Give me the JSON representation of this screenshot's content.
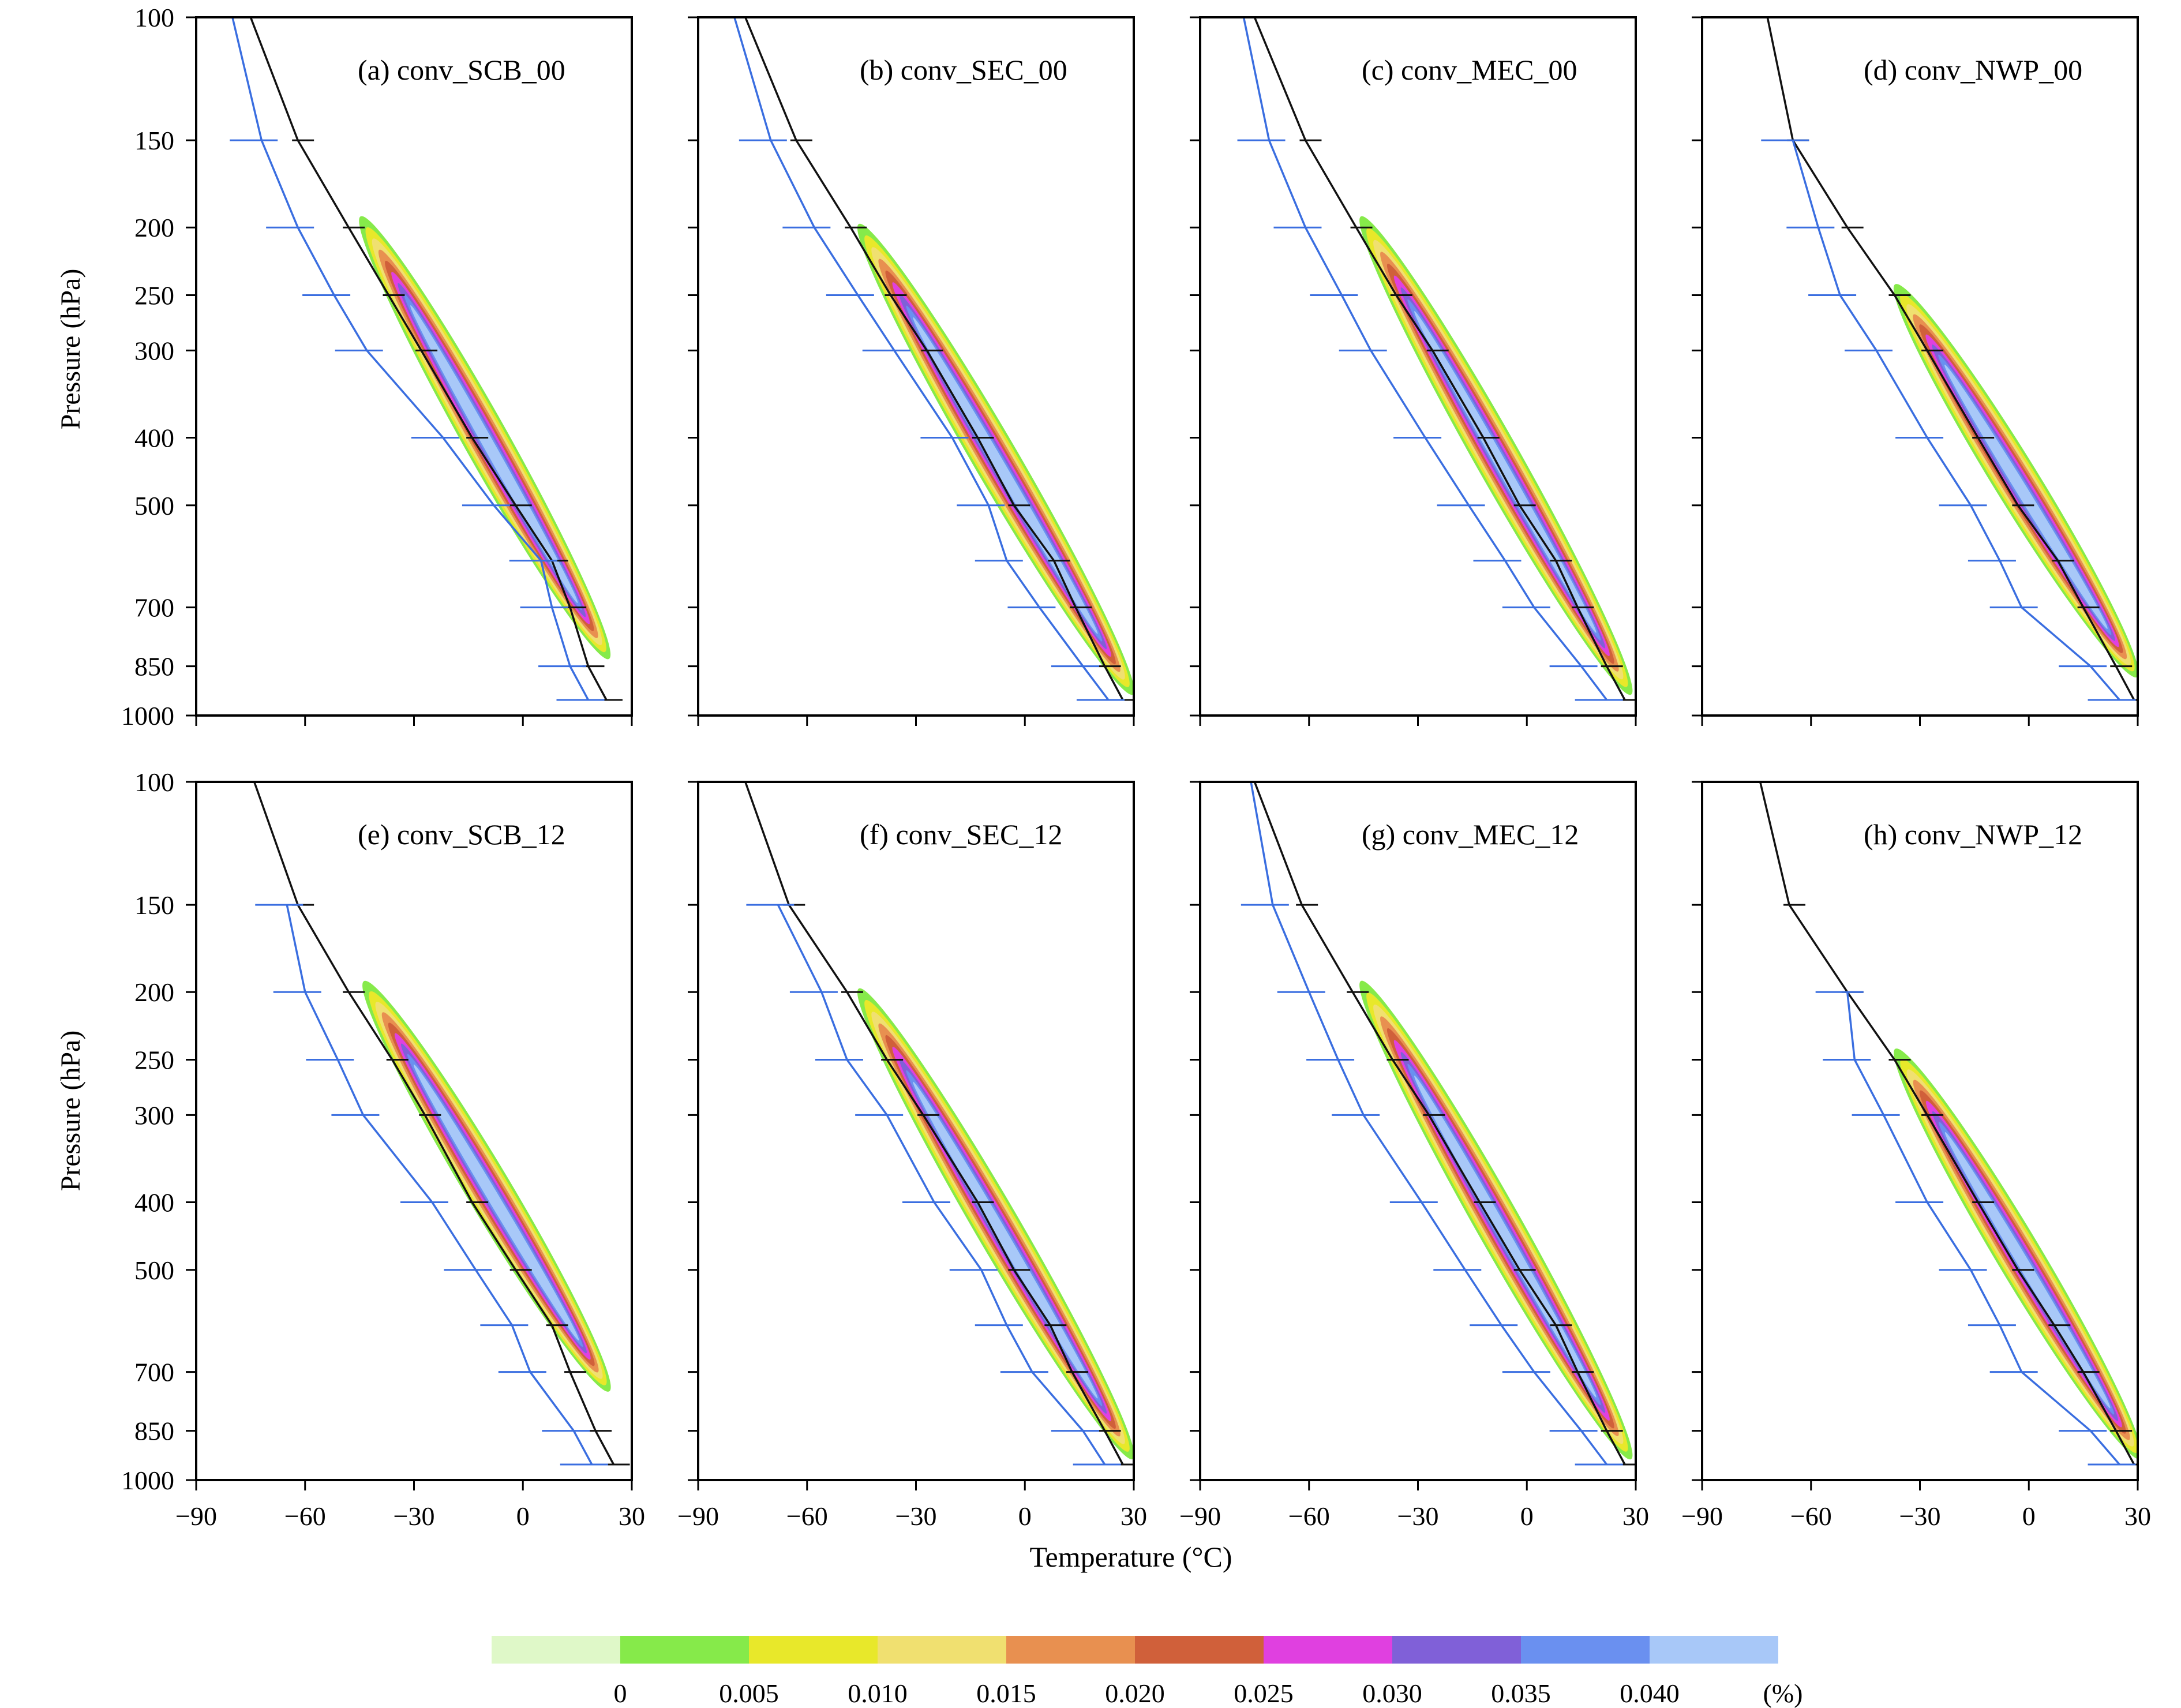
{
  "figure": {
    "axes": {
      "ylabel": "Pressure (hPa)",
      "xlabel": "Temperature (°C)",
      "yticks": [
        "100",
        "150",
        "200",
        "250",
        "300",
        "400",
        "500",
        "700",
        "850",
        "1000"
      ],
      "xticks": [
        "−90",
        "−60",
        "−30",
        "0",
        "30"
      ]
    },
    "colorbar": {
      "labels": [
        "0",
        "0.005",
        "0.010",
        "0.015",
        "0.020",
        "0.025",
        "0.030",
        "0.035",
        "0.040"
      ],
      "unit": "(%)",
      "colors": [
        "#dff8c8",
        "#86ea4a",
        "#e8e82a",
        "#f0e070",
        "#e89050",
        "#d0603a",
        "#e040e0",
        "#8060d8",
        "#6a90f0",
        "#a8c8f8"
      ]
    }
  },
  "chart_data": [
    {
      "type": "contour",
      "title": "(a) conv_SCB_00",
      "ylabel": "Pressure (hPa)",
      "xlabel": "",
      "xlim": [
        -90,
        30
      ],
      "ylim": [
        1000,
        100
      ],
      "yscale": "log",
      "profiles": [
        {
          "name": "black",
          "points": [
            [
              -75,
              100
            ],
            [
              -62,
              150
            ],
            [
              -48,
              200
            ],
            [
              -37,
              250
            ],
            [
              -28,
              300
            ],
            [
              -14,
              400
            ],
            [
              -2,
              500
            ],
            [
              8,
              600
            ],
            [
              13,
              700
            ],
            [
              18,
              850
            ],
            [
              23,
              950
            ]
          ]
        },
        {
          "name": "blue",
          "points": [
            [
              -80,
              100
            ],
            [
              -72,
              150
            ],
            [
              -62,
              200
            ],
            [
              -52,
              250
            ],
            [
              -43,
              300
            ],
            [
              -22,
              400
            ],
            [
              -8,
              500
            ],
            [
              5,
              600
            ],
            [
              8,
              700
            ],
            [
              13,
              850
            ],
            [
              18,
              950
            ]
          ]
        }
      ],
      "blob": {
        "start": [
          -43,
          200
        ],
        "end": [
          22,
          800
        ]
      }
    },
    {
      "type": "contour",
      "title": "(b) conv_SEC_00",
      "ylabel": "Pressure (hPa)",
      "xlabel": "",
      "xlim": [
        -90,
        30
      ],
      "ylim": [
        1000,
        100
      ],
      "yscale": "log",
      "profiles": [
        {
          "name": "black",
          "points": [
            [
              -77,
              100
            ],
            [
              -63,
              150
            ],
            [
              -48,
              200
            ],
            [
              -37,
              250
            ],
            [
              -27,
              300
            ],
            [
              -13,
              400
            ],
            [
              -3,
              500
            ],
            [
              8,
              600
            ],
            [
              14,
              700
            ],
            [
              22,
              850
            ],
            [
              27,
              950
            ]
          ]
        },
        {
          "name": "blue",
          "points": [
            [
              -80,
              100
            ],
            [
              -70,
              150
            ],
            [
              -58,
              200
            ],
            [
              -46,
              250
            ],
            [
              -36,
              300
            ],
            [
              -20,
              400
            ],
            [
              -10,
              500
            ],
            [
              -5,
              600
            ],
            [
              4,
              700
            ],
            [
              16,
              850
            ],
            [
              23,
              950
            ]
          ]
        }
      ],
      "blob": {
        "start": [
          -44,
          205
        ],
        "end": [
          28,
          900
        ]
      }
    },
    {
      "type": "contour",
      "title": "(c) conv_MEC_00",
      "ylabel": "Pressure (hPa)",
      "xlabel": "",
      "xlim": [
        -90,
        30
      ],
      "ylim": [
        1000,
        100
      ],
      "yscale": "log",
      "profiles": [
        {
          "name": "black",
          "points": [
            [
              -75,
              100
            ],
            [
              -61,
              150
            ],
            [
              -47,
              200
            ],
            [
              -36,
              250
            ],
            [
              -26,
              300
            ],
            [
              -12,
              400
            ],
            [
              -2,
              500
            ],
            [
              8,
              600
            ],
            [
              14,
              700
            ],
            [
              22,
              850
            ],
            [
              27,
              950
            ]
          ]
        },
        {
          "name": "blue",
          "points": [
            [
              -78,
              100
            ],
            [
              -71,
              150
            ],
            [
              -61,
              200
            ],
            [
              -51,
              250
            ],
            [
              -43,
              300
            ],
            [
              -28,
              400
            ],
            [
              -16,
              500
            ],
            [
              -6,
              600
            ],
            [
              2,
              700
            ],
            [
              15,
              850
            ],
            [
              22,
              950
            ]
          ]
        }
      ],
      "blob": {
        "start": [
          -44,
          200
        ],
        "end": [
          27,
          900
        ]
      }
    },
    {
      "type": "contour",
      "title": "(d) conv_NWP_00",
      "ylabel": "Pressure (hPa)",
      "xlabel": "",
      "xlim": [
        -90,
        30
      ],
      "ylim": [
        1000,
        100
      ],
      "yscale": "log",
      "profiles": [
        {
          "name": "black",
          "points": [
            [
              -72,
              100
            ],
            [
              -65,
              150
            ],
            [
              -50,
              200
            ],
            [
              -37,
              250
            ],
            [
              -28,
              300
            ],
            [
              -14,
              400
            ],
            [
              -3,
              500
            ],
            [
              8,
              600
            ],
            [
              15,
              700
            ],
            [
              24,
              850
            ],
            [
              29,
              950
            ]
          ]
        },
        {
          "name": "blue",
          "points": [
            [
              -65,
              150
            ],
            [
              -58,
              200
            ],
            [
              -52,
              250
            ],
            [
              -42,
              300
            ],
            [
              -28,
              400
            ],
            [
              -16,
              500
            ],
            [
              -8,
              600
            ],
            [
              -2,
              700
            ],
            [
              17,
              850
            ],
            [
              25,
              950
            ]
          ]
        }
      ],
      "blob": {
        "start": [
          -35,
          250
        ],
        "end": [
          28,
          850
        ]
      }
    },
    {
      "type": "contour",
      "title": "(e) conv_SCB_12",
      "ylabel": "Pressure (hPa)",
      "xlabel": "",
      "xlim": [
        -90,
        30
      ],
      "ylim": [
        1000,
        100
      ],
      "yscale": "log",
      "profiles": [
        {
          "name": "black",
          "points": [
            [
              -74,
              100
            ],
            [
              -62,
              150
            ],
            [
              -48,
              200
            ],
            [
              -36,
              250
            ],
            [
              -27,
              300
            ],
            [
              -14,
              400
            ],
            [
              -2,
              500
            ],
            [
              8,
              600
            ],
            [
              13,
              700
            ],
            [
              20,
              850
            ],
            [
              25,
              950
            ]
          ]
        },
        {
          "name": "blue",
          "points": [
            [
              -65,
              150
            ],
            [
              -60,
              200
            ],
            [
              -51,
              250
            ],
            [
              -44,
              300
            ],
            [
              -25,
              400
            ],
            [
              -13,
              500
            ],
            [
              -3,
              600
            ],
            [
              2,
              700
            ],
            [
              14,
              850
            ],
            [
              19,
              950
            ]
          ]
        }
      ],
      "blob": {
        "start": [
          -42,
          200
        ],
        "end": [
          22,
          720
        ]
      }
    },
    {
      "type": "contour",
      "title": "(f) conv_SEC_12",
      "ylabel": "Pressure (hPa)",
      "xlabel": "",
      "xlim": [
        -90,
        30
      ],
      "ylim": [
        1000,
        100
      ],
      "yscale": "log",
      "profiles": [
        {
          "name": "black",
          "points": [
            [
              -77,
              100
            ],
            [
              -65,
              150
            ],
            [
              -49,
              200
            ],
            [
              -38,
              250
            ],
            [
              -28,
              300
            ],
            [
              -13,
              400
            ],
            [
              -3,
              500
            ],
            [
              7,
              600
            ],
            [
              13,
              700
            ],
            [
              22,
              850
            ],
            [
              27,
              950
            ]
          ]
        },
        {
          "name": "blue",
          "points": [
            [
              -68,
              150
            ],
            [
              -56,
              200
            ],
            [
              -49,
              250
            ],
            [
              -38,
              300
            ],
            [
              -25,
              400
            ],
            [
              -12,
              500
            ],
            [
              -5,
              600
            ],
            [
              2,
              700
            ],
            [
              16,
              850
            ],
            [
              22,
              950
            ]
          ]
        }
      ],
      "blob": {
        "start": [
          -44,
          205
        ],
        "end": [
          28,
          900
        ]
      }
    },
    {
      "type": "contour",
      "title": "(g) conv_MEC_12",
      "ylabel": "Pressure (hPa)",
      "xlabel": "",
      "xlim": [
        -90,
        30
      ],
      "ylim": [
        1000,
        100
      ],
      "yscale": "log",
      "profiles": [
        {
          "name": "black",
          "points": [
            [
              -75,
              100
            ],
            [
              -62,
              150
            ],
            [
              -48,
              200
            ],
            [
              -37,
              250
            ],
            [
              -27,
              300
            ],
            [
              -13,
              400
            ],
            [
              -2,
              500
            ],
            [
              8,
              600
            ],
            [
              14,
              700
            ],
            [
              22,
              850
            ],
            [
              27,
              950
            ]
          ]
        },
        {
          "name": "blue",
          "points": [
            [
              -76,
              100
            ],
            [
              -70,
              150
            ],
            [
              -60,
              200
            ],
            [
              -52,
              250
            ],
            [
              -45,
              300
            ],
            [
              -29,
              400
            ],
            [
              -17,
              500
            ],
            [
              -7,
              600
            ],
            [
              2,
              700
            ],
            [
              15,
              850
            ],
            [
              22,
              950
            ]
          ]
        }
      ],
      "blob": {
        "start": [
          -44,
          200
        ],
        "end": [
          27,
          900
        ]
      }
    },
    {
      "type": "contour",
      "title": "(h) conv_NWP_12",
      "ylabel": "Pressure (hPa)",
      "xlabel": "",
      "xlim": [
        -90,
        30
      ],
      "ylim": [
        1000,
        100
      ],
      "yscale": "log",
      "profiles": [
        {
          "name": "black",
          "points": [
            [
              -74,
              100
            ],
            [
              -66,
              150
            ],
            [
              -50,
              200
            ],
            [
              -37,
              250
            ],
            [
              -28,
              300
            ],
            [
              -14,
              400
            ],
            [
              -3,
              500
            ],
            [
              7,
              600
            ],
            [
              15,
              700
            ],
            [
              24,
              850
            ],
            [
              29,
              950
            ]
          ]
        },
        {
          "name": "blue",
          "points": [
            [
              -50,
              200
            ],
            [
              -48,
              250
            ],
            [
              -40,
              300
            ],
            [
              -28,
              400
            ],
            [
              -16,
              500
            ],
            [
              -8,
              600
            ],
            [
              -2,
              700
            ],
            [
              17,
              850
            ],
            [
              25,
              950
            ]
          ]
        }
      ],
      "blob": {
        "start": [
          -35,
          250
        ],
        "end": [
          29,
          900
        ]
      }
    }
  ]
}
